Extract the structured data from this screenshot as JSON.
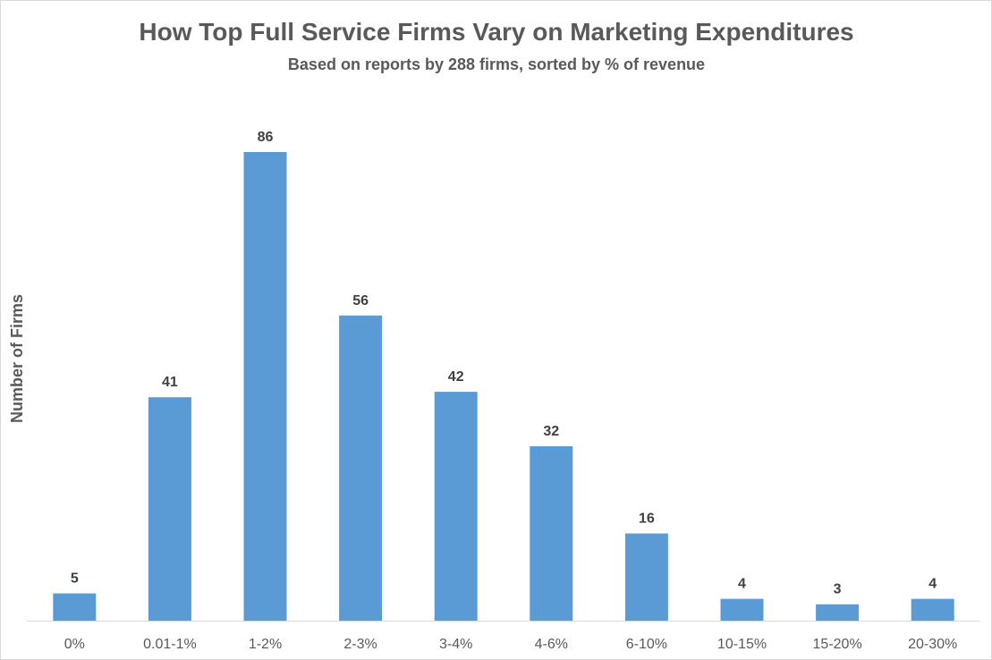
{
  "chart_data": {
    "type": "bar",
    "title": "How Top Full Service Firms Vary on Marketing Expenditures",
    "subtitle": "Based on reports by 288 firms, sorted by % of revenue",
    "xlabel": "",
    "ylabel": "Number of Firms",
    "categories": [
      "0%",
      "0.01-1%",
      "1-2%",
      "2-3%",
      "3-4%",
      "4-6%",
      "6-10%",
      "10-15%",
      "15-20%",
      "20-30%"
    ],
    "values": [
      5,
      41,
      86,
      56,
      42,
      32,
      16,
      4,
      3,
      4
    ],
    "ylim": [
      0,
      90
    ],
    "grid": false,
    "legend": "none",
    "bar_color": "#5B9BD5",
    "data_labels": true
  }
}
